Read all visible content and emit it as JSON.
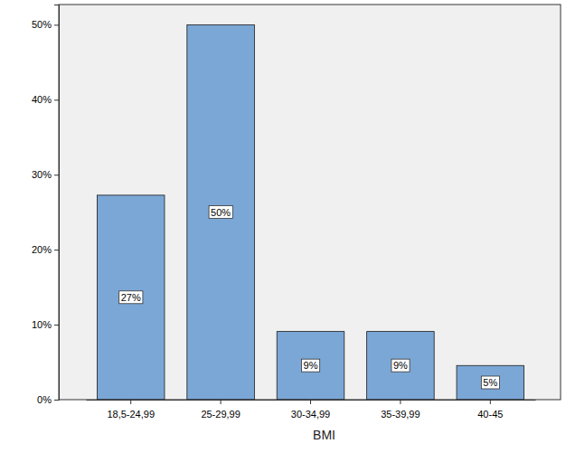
{
  "chart_data": {
    "type": "bar",
    "x_label": "BMI",
    "categories": [
      "18,5-24,99",
      "25-29,99",
      "30-34,99",
      "35-39,99",
      "40-45"
    ],
    "values": [
      27.27,
      50,
      9.09,
      9.09,
      4.55
    ],
    "value_labels": [
      "27%",
      "50%",
      "9%",
      "9%",
      "5%"
    ],
    "data_labels": true,
    "color": "#7ba7d6",
    "ylim": [
      0,
      52.7
    ],
    "yticks": [
      {
        "value": 0,
        "label": "0%"
      },
      {
        "value": 10,
        "label": "10%"
      },
      {
        "value": 20,
        "label": "20%"
      },
      {
        "value": 30,
        "label": "30%"
      },
      {
        "value": 40,
        "label": "40%"
      },
      {
        "value": 50,
        "label": "50%"
      }
    ],
    "grid": false
  }
}
